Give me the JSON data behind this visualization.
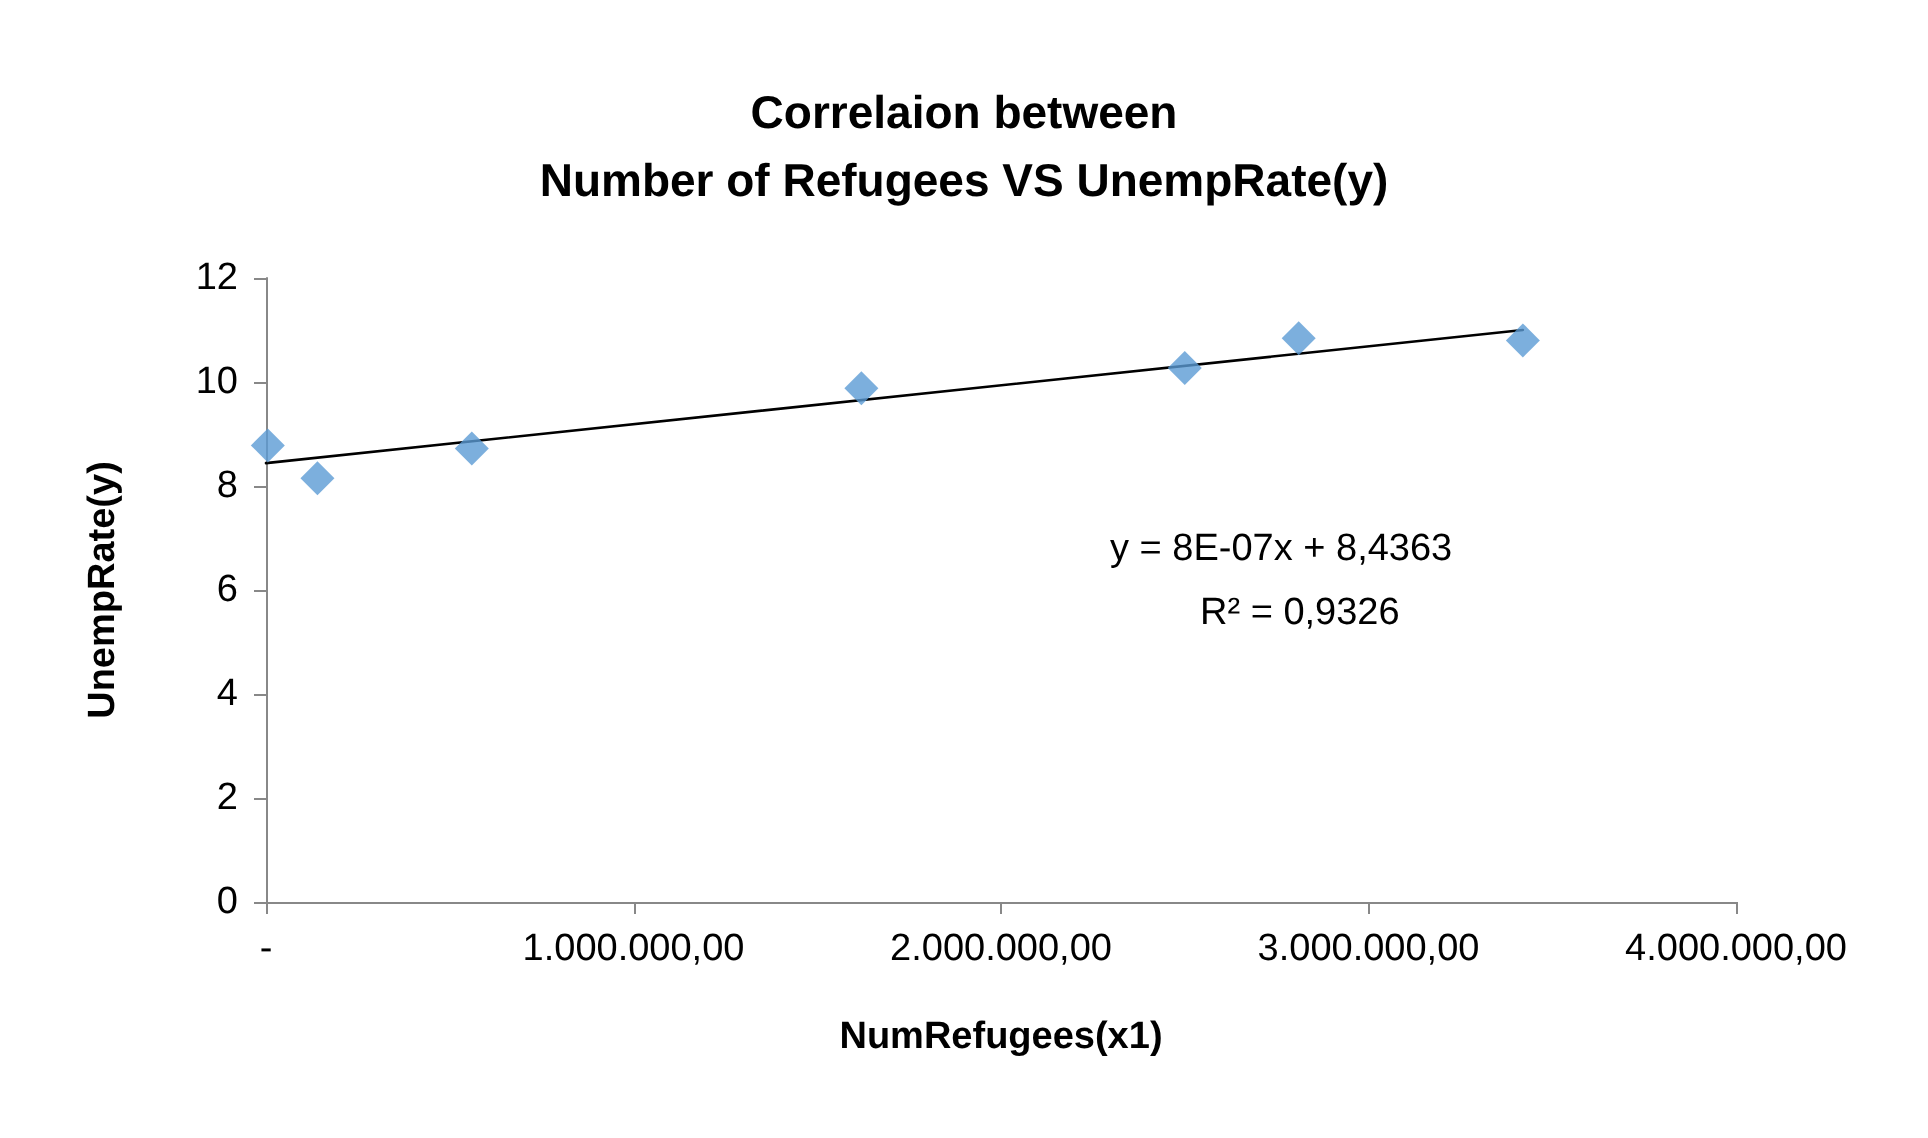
{
  "chart_data": {
    "type": "scatter",
    "title": "Correlaion between\nNumber of Refugees VS UnempRate(y)",
    "xlabel": "NumRefugees(x1)",
    "ylabel": "UnempRate(y)",
    "series": [
      {
        "type": "scatter",
        "color": "#5b9bd5",
        "marker": "diamond",
        "x": [
          5000,
          140000,
          560000,
          1620000,
          2500000,
          2810000,
          3420000
        ],
        "values": [
          8.78,
          8.15,
          8.72,
          9.88,
          10.27,
          10.84,
          10.8
        ]
      },
      {
        "type": "line",
        "color": "#000000",
        "marker": "none",
        "line_style": "solid",
        "x": [
          0,
          3420000
        ],
        "values": [
          8.44,
          11.0
        ]
      }
    ],
    "xlim": [
      0,
      4000000
    ],
    "xticks": [
      {
        "value": 0,
        "label": "-"
      },
      {
        "value": 1000000,
        "label": "1.000.000,00"
      },
      {
        "value": 2000000,
        "label": "2.000.000,00"
      },
      {
        "value": 3000000,
        "label": "3.000.000,00"
      },
      {
        "value": 4000000,
        "label": "4.000.000,00"
      }
    ],
    "ylim": [
      0,
      12
    ],
    "yticks": [
      0,
      2,
      4,
      6,
      8,
      10,
      12
    ],
    "annotations": [
      "y = 8E-07x + 8,4363",
      "R² = 0,9326"
    ],
    "grid": false
  }
}
